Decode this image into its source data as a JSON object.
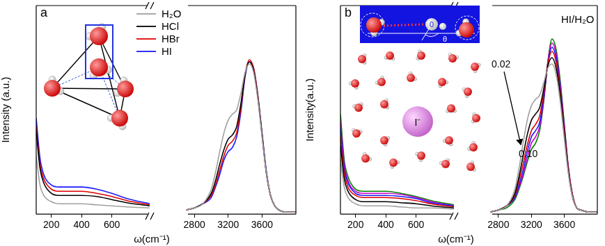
{
  "chart_data": [
    {
      "type": "line",
      "title": "a",
      "x_label": "ω(cm⁻¹)",
      "y_label": "Intensity (a.u.)",
      "x": [
        100,
        125,
        150,
        200,
        250,
        300,
        400,
        500,
        600,
        700,
        850,
        2700,
        2800,
        2900,
        3000,
        3050,
        3100,
        3150,
        3200,
        3250,
        3300,
        3350,
        3400,
        3450,
        3500,
        3550,
        3600,
        3650,
        3700,
        3750,
        3800,
        3900,
        4000
      ],
      "xlim": [
        [
          100,
          850
        ],
        [
          2700,
          4000
        ]
      ],
      "xticks": [
        200,
        400,
        600,
        2800,
        3200,
        3600
      ],
      "ylim": [
        0,
        1
      ],
      "grid": false,
      "tick_labels": "x",
      "legend": "top",
      "series": [
        {
          "name": "H₂O",
          "color": "#a0a0a0",
          "values": [
            0.28,
            0.14,
            0.09,
            0.06,
            0.05,
            0.05,
            0.05,
            0.045,
            0.04,
            0.035,
            0.03,
            0.02,
            0.03,
            0.05,
            0.12,
            0.2,
            0.3,
            0.39,
            0.45,
            0.48,
            0.5,
            0.58,
            0.68,
            0.72,
            0.68,
            0.55,
            0.37,
            0.2,
            0.09,
            0.04,
            0.02,
            0.01,
            0.01
          ]
        },
        {
          "name": "HCl",
          "color": "#000000",
          "values": [
            0.4,
            0.22,
            0.15,
            0.1,
            0.09,
            0.09,
            0.09,
            0.085,
            0.07,
            0.055,
            0.04,
            0.02,
            0.03,
            0.05,
            0.1,
            0.16,
            0.24,
            0.31,
            0.36,
            0.38,
            0.42,
            0.53,
            0.67,
            0.73,
            0.69,
            0.56,
            0.38,
            0.2,
            0.09,
            0.04,
            0.02,
            0.01,
            0.01
          ]
        },
        {
          "name": "HBr",
          "color": "#e00000",
          "values": [
            0.42,
            0.24,
            0.17,
            0.12,
            0.11,
            0.11,
            0.11,
            0.1,
            0.085,
            0.065,
            0.045,
            0.02,
            0.03,
            0.05,
            0.09,
            0.14,
            0.21,
            0.28,
            0.33,
            0.35,
            0.39,
            0.51,
            0.67,
            0.74,
            0.7,
            0.57,
            0.38,
            0.2,
            0.09,
            0.04,
            0.02,
            0.01,
            0.01
          ]
        },
        {
          "name": "HI",
          "color": "#1a1aff",
          "values": [
            0.46,
            0.27,
            0.19,
            0.14,
            0.13,
            0.13,
            0.13,
            0.12,
            0.1,
            0.075,
            0.05,
            0.02,
            0.03,
            0.05,
            0.08,
            0.13,
            0.19,
            0.26,
            0.3,
            0.32,
            0.37,
            0.49,
            0.66,
            0.73,
            0.7,
            0.57,
            0.39,
            0.21,
            0.09,
            0.04,
            0.02,
            0.01,
            0.01
          ]
        }
      ]
    },
    {
      "type": "line",
      "title": "b",
      "x_label": "ω(cm⁻¹)",
      "y_label": "Intensity(a.u.)",
      "x": [
        100,
        125,
        150,
        200,
        250,
        300,
        400,
        500,
        600,
        700,
        850,
        2700,
        2800,
        2900,
        3000,
        3050,
        3100,
        3150,
        3200,
        3250,
        3300,
        3350,
        3400,
        3450,
        3500,
        3550,
        3600,
        3650,
        3700,
        3750,
        3800,
        3900,
        4000
      ],
      "xlim": [
        [
          100,
          850
        ],
        [
          2700,
          4000
        ]
      ],
      "xticks": [
        200,
        400,
        600,
        2800,
        3200,
        3600
      ],
      "ylim": [
        0,
        1
      ],
      "grid": false,
      "tick_labels": "x",
      "annotations": [
        "HI/H₂O",
        "0.02",
        "0.10",
        "I⁻",
        "0",
        "θ"
      ],
      "series": [
        {
          "color": "#a0a0a0",
          "values": [
            0.26,
            0.13,
            0.08,
            0.05,
            0.04,
            0.04,
            0.04,
            0.035,
            0.03,
            0.03,
            0.025,
            0.01,
            0.02,
            0.04,
            0.12,
            0.22,
            0.34,
            0.45,
            0.52,
            0.55,
            0.57,
            0.63,
            0.7,
            0.72,
            0.67,
            0.54,
            0.36,
            0.19,
            0.08,
            0.03,
            0.02,
            0.01,
            0.01
          ]
        },
        {
          "color": "#000000",
          "values": [
            0.33,
            0.17,
            0.11,
            0.07,
            0.06,
            0.06,
            0.06,
            0.055,
            0.05,
            0.04,
            0.03,
            0.01,
            0.02,
            0.04,
            0.1,
            0.18,
            0.28,
            0.38,
            0.45,
            0.48,
            0.51,
            0.6,
            0.71,
            0.75,
            0.7,
            0.57,
            0.38,
            0.2,
            0.08,
            0.03,
            0.02,
            0.01,
            0.01
          ]
        },
        {
          "color": "#e00000",
          "values": [
            0.37,
            0.2,
            0.13,
            0.09,
            0.08,
            0.08,
            0.08,
            0.075,
            0.065,
            0.05,
            0.035,
            0.01,
            0.02,
            0.04,
            0.09,
            0.16,
            0.24,
            0.33,
            0.4,
            0.43,
            0.47,
            0.58,
            0.72,
            0.78,
            0.73,
            0.59,
            0.4,
            0.21,
            0.09,
            0.03,
            0.02,
            0.01,
            0.01
          ]
        },
        {
          "color": "#1a1aff",
          "values": [
            0.41,
            0.22,
            0.15,
            0.1,
            0.09,
            0.09,
            0.09,
            0.085,
            0.075,
            0.055,
            0.04,
            0.01,
            0.02,
            0.04,
            0.08,
            0.14,
            0.21,
            0.3,
            0.37,
            0.4,
            0.44,
            0.56,
            0.72,
            0.8,
            0.75,
            0.61,
            0.41,
            0.21,
            0.09,
            0.03,
            0.02,
            0.01,
            0.01
          ]
        },
        {
          "color": "#cc00cc",
          "values": [
            0.44,
            0.24,
            0.16,
            0.11,
            0.1,
            0.1,
            0.1,
            0.095,
            0.08,
            0.06,
            0.04,
            0.01,
            0.02,
            0.04,
            0.08,
            0.13,
            0.19,
            0.27,
            0.34,
            0.37,
            0.42,
            0.55,
            0.73,
            0.82,
            0.77,
            0.62,
            0.42,
            0.22,
            0.09,
            0.03,
            0.02,
            0.01,
            0.01
          ]
        },
        {
          "color": "#008000",
          "values": [
            0.48,
            0.26,
            0.18,
            0.12,
            0.11,
            0.11,
            0.11,
            0.1,
            0.085,
            0.065,
            0.045,
            0.01,
            0.02,
            0.03,
            0.07,
            0.12,
            0.18,
            0.25,
            0.31,
            0.34,
            0.4,
            0.54,
            0.73,
            0.84,
            0.79,
            0.64,
            0.43,
            0.22,
            0.09,
            0.03,
            0.02,
            0.01,
            0.01
          ]
        }
      ]
    }
  ]
}
